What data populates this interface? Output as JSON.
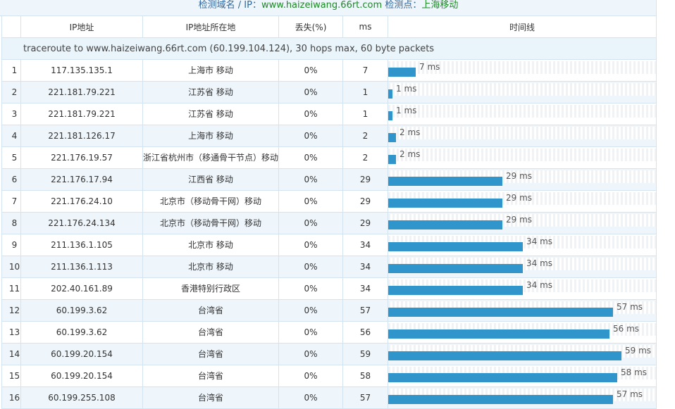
{
  "header": {
    "prefix": "检测域名 / IP：",
    "domain": "www.haizeiwang.66rt.com",
    "middle": " 检测点：",
    "location": "上海移动"
  },
  "columns": {
    "index": "",
    "ip": "IP地址",
    "location": "IP地址所在地",
    "loss": "丢失(%)",
    "ms": "ms",
    "timeline": "时间线"
  },
  "traceroute_line": "traceroute to www.haizeiwang.66rt.com (60.199.104.124), 30 hops max, 60 byte packets",
  "timeline_max_ms": 68,
  "ms_suffix": " ms",
  "colors": {
    "bar": "#2f95cb",
    "header_accent": "#1d8a26",
    "header_text": "#336699"
  },
  "hops": [
    {
      "n": "1",
      "ip": "117.135.135.1",
      "loc": "上海市 移动",
      "loss": "0%",
      "ms": 7
    },
    {
      "n": "2",
      "ip": "221.181.79.221",
      "loc": "江苏省 移动",
      "loss": "0%",
      "ms": 1
    },
    {
      "n": "3",
      "ip": "221.181.79.221",
      "loc": "江苏省 移动",
      "loss": "0%",
      "ms": 1
    },
    {
      "n": "4",
      "ip": "221.181.126.17",
      "loc": "上海市 移动",
      "loss": "0%",
      "ms": 2
    },
    {
      "n": "5",
      "ip": "221.176.19.57",
      "loc": "浙江省杭州市（移通骨干节点）移动",
      "loss": "0%",
      "ms": 2
    },
    {
      "n": "6",
      "ip": "221.176.17.94",
      "loc": "江西省 移动",
      "loss": "0%",
      "ms": 29
    },
    {
      "n": "7",
      "ip": "221.176.24.10",
      "loc": "北京市（移动骨干网）移动",
      "loss": "0%",
      "ms": 29
    },
    {
      "n": "8",
      "ip": "221.176.24.134",
      "loc": "北京市（移动骨干网）移动",
      "loss": "0%",
      "ms": 29
    },
    {
      "n": "9",
      "ip": "211.136.1.105",
      "loc": "北京市 移动",
      "loss": "0%",
      "ms": 34
    },
    {
      "n": "10",
      "ip": "211.136.1.113",
      "loc": "北京市 移动",
      "loss": "0%",
      "ms": 34
    },
    {
      "n": "11",
      "ip": "202.40.161.89",
      "loc": "香港特别行政区",
      "loss": "0%",
      "ms": 34
    },
    {
      "n": "12",
      "ip": "60.199.3.62",
      "loc": "台湾省",
      "loss": "0%",
      "ms": 57
    },
    {
      "n": "13",
      "ip": "60.199.3.62",
      "loc": "台湾省",
      "loss": "0%",
      "ms": 56
    },
    {
      "n": "14",
      "ip": "60.199.20.154",
      "loc": "台湾省",
      "loss": "0%",
      "ms": 59
    },
    {
      "n": "15",
      "ip": "60.199.20.154",
      "loc": "台湾省",
      "loss": "0%",
      "ms": 58
    },
    {
      "n": "16",
      "ip": "60.199.255.108",
      "loc": "台湾省",
      "loss": "0%",
      "ms": 57
    }
  ]
}
